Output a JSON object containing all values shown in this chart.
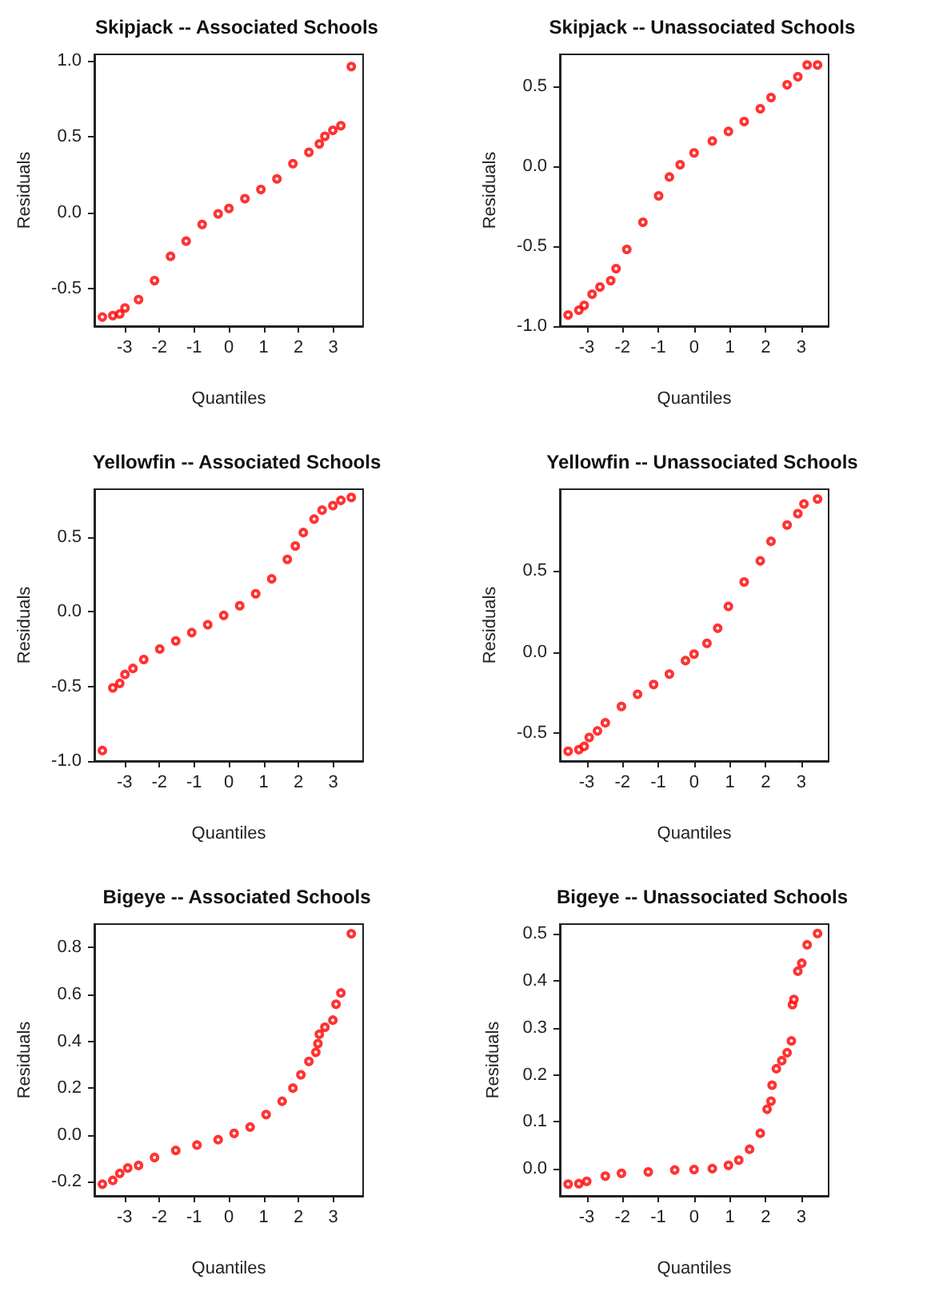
{
  "chart_data": [
    {
      "type": "scatter",
      "title": "Skipjack -- Associated Schools",
      "xlabel": "Quantiles",
      "ylabel": "Residuals",
      "marker": "circle",
      "grid": false,
      "xlim": [
        -3.87,
        3.86
      ],
      "xticks": [
        -3,
        -2,
        -1,
        0,
        1,
        2,
        3
      ],
      "ylim": [
        -0.75,
        1.04
      ],
      "yticks": [
        -0.5,
        {
          "value": 0,
          "label": "0.0"
        },
        0.5,
        {
          "value": 1,
          "label": "1.0"
        }
      ],
      "series": [
        {
          "color": "#ff0000",
          "x": [
            -3.64,
            -3.34,
            -3.14,
            -2.99,
            -2.6,
            -2.14,
            -1.68,
            -1.23,
            -0.77,
            -0.31,
            0,
            0.46,
            0.92,
            1.38,
            1.84,
            2.3,
            2.6,
            2.76,
            2.99,
            3.22,
            3.52
          ],
          "values": [
            -0.69,
            -0.68,
            -0.67,
            -0.63,
            -0.575,
            -0.45,
            -0.29,
            -0.19,
            -0.08,
            -0.01,
            0.025,
            0.09,
            0.15,
            0.22,
            0.32,
            0.395,
            0.45,
            0.5,
            0.54,
            0.57,
            0.96
          ]
        }
      ]
    },
    {
      "type": "scatter",
      "title": "Skipjack -- Unassociated Schools",
      "xlabel": "Quantiles",
      "ylabel": "Residuals",
      "marker": "circle",
      "grid": false,
      "xlim": [
        -3.75,
        3.76
      ],
      "xticks": [
        -3,
        -2,
        -1,
        0,
        1,
        2,
        3
      ],
      "ylim": [
        -1.0,
        0.7
      ],
      "yticks": [
        {
          "value": -1,
          "label": "-1.0"
        },
        -0.5,
        {
          "value": 0,
          "label": "0.0"
        },
        0.5
      ],
      "series": [
        {
          "color": "#ff0000",
          "x": [
            -3.52,
            -3.22,
            -3.07,
            -2.85,
            -2.63,
            -2.33,
            -2.18,
            -1.88,
            -1.43,
            -0.99,
            -0.69,
            -0.39,
            0,
            0.51,
            0.96,
            1.4,
            1.85,
            2.15,
            2.6,
            2.9,
            3.16,
            3.45
          ],
          "values": [
            -0.93,
            -0.9,
            -0.87,
            -0.8,
            -0.755,
            -0.715,
            -0.64,
            -0.52,
            -0.35,
            -0.185,
            -0.067,
            0.01,
            0.084,
            0.158,
            0.218,
            0.28,
            0.36,
            0.43,
            0.51,
            0.56,
            0.634,
            0.634
          ]
        }
      ]
    },
    {
      "type": "scatter",
      "title": "Yellowfin -- Associated Schools",
      "xlabel": "Quantiles",
      "ylabel": "Residuals",
      "marker": "circle",
      "grid": false,
      "xlim": [
        -3.87,
        3.86
      ],
      "xticks": [
        -3,
        -2,
        -1,
        0,
        1,
        2,
        3
      ],
      "ylim": [
        -1.0,
        0.82
      ],
      "yticks": [
        {
          "value": -1,
          "label": "-1.0"
        },
        -0.5,
        {
          "value": 0,
          "label": "0.0"
        },
        0.5
      ],
      "series": [
        {
          "color": "#ff0000",
          "x": [
            -3.64,
            -3.34,
            -3.14,
            -2.99,
            -2.76,
            -2.45,
            -1.99,
            -1.53,
            -1.07,
            -0.61,
            -0.15,
            0.31,
            0.77,
            1.23,
            1.68,
            1.91,
            2.14,
            2.45,
            2.68,
            2.99,
            3.22,
            3.52
          ],
          "values": [
            -0.93,
            -0.51,
            -0.48,
            -0.42,
            -0.38,
            -0.32,
            -0.25,
            -0.196,
            -0.14,
            -0.087,
            -0.025,
            0.04,
            0.12,
            0.22,
            0.35,
            0.44,
            0.53,
            0.62,
            0.68,
            0.71,
            0.746,
            0.765
          ]
        }
      ]
    },
    {
      "type": "scatter",
      "title": "Yellowfin -- Unassociated Schools",
      "xlabel": "Quantiles",
      "ylabel": "Residuals",
      "marker": "circle",
      "grid": false,
      "xlim": [
        -3.75,
        3.76
      ],
      "xticks": [
        -3,
        -2,
        -1,
        0,
        1,
        2,
        3
      ],
      "ylim": [
        -0.67,
        1.0
      ],
      "yticks": [
        -0.5,
        {
          "value": 0,
          "label": "0.0"
        },
        0.5
      ],
      "series": [
        {
          "color": "#ff0000",
          "x": [
            -3.52,
            -3.22,
            -3.07,
            -2.93,
            -2.7,
            -2.48,
            -2.03,
            -1.58,
            -1.13,
            -0.69,
            -0.24,
            0,
            0.36,
            0.66,
            0.96,
            1.4,
            1.85,
            2.15,
            2.6,
            2.9,
            3.07,
            3.45
          ],
          "values": [
            -0.61,
            -0.6,
            -0.58,
            -0.525,
            -0.485,
            -0.435,
            -0.335,
            -0.26,
            -0.2,
            -0.136,
            -0.053,
            -0.013,
            0.053,
            0.146,
            0.28,
            0.43,
            0.56,
            0.68,
            0.78,
            0.85,
            0.91,
            0.94
          ]
        }
      ]
    },
    {
      "type": "scatter",
      "title": "Bigeye -- Associated Schools",
      "xlabel": "Quantiles",
      "ylabel": "Residuals",
      "marker": "circle",
      "grid": false,
      "xlim": [
        -3.87,
        3.86
      ],
      "xticks": [
        -3,
        -2,
        -1,
        0,
        1,
        2,
        3
      ],
      "ylim": [
        -0.26,
        0.9
      ],
      "yticks": [
        -0.2,
        {
          "value": 0,
          "label": "0.0"
        },
        0.2,
        0.4,
        0.6,
        0.8
      ],
      "series": [
        {
          "color": "#ff0000",
          "x": [
            -3.64,
            -3.34,
            -3.14,
            -2.91,
            -2.6,
            -2.14,
            -1.53,
            -0.92,
            -0.31,
            0.15,
            0.61,
            1.07,
            1.53,
            1.84,
            2.07,
            2.3,
            2.5,
            2.56,
            2.6,
            2.76,
            2.99,
            3.08,
            3.22,
            3.52
          ],
          "values": [
            -0.21,
            -0.194,
            -0.164,
            -0.141,
            -0.13,
            -0.096,
            -0.066,
            -0.043,
            -0.02,
            0.007,
            0.034,
            0.087,
            0.144,
            0.2,
            0.257,
            0.314,
            0.353,
            0.39,
            0.43,
            0.46,
            0.49,
            0.558,
            0.606,
            0.859
          ]
        }
      ]
    },
    {
      "type": "scatter",
      "title": "Bigeye -- Unassociated Schools",
      "xlabel": "Quantiles",
      "ylabel": "Residuals",
      "marker": "circle",
      "grid": false,
      "xlim": [
        -3.75,
        3.76
      ],
      "xticks": [
        -3,
        -2,
        -1,
        0,
        1,
        2,
        3
      ],
      "ylim": [
        -0.057,
        0.52
      ],
      "yticks": [
        {
          "value": 0,
          "label": "0.0"
        },
        0.1,
        0.2,
        0.3,
        0.4,
        0.5
      ],
      "series": [
        {
          "color": "#ff0000",
          "x": [
            -3.52,
            -3.22,
            -3.0,
            -2.48,
            -2.03,
            -1.28,
            -0.54,
            0,
            0.51,
            0.96,
            1.25,
            1.55,
            1.85,
            2.04,
            2.15,
            2.18,
            2.3,
            2.45,
            2.6,
            2.72,
            2.75,
            2.79,
            2.9,
            3.01,
            3.16,
            3.45
          ],
          "values": [
            -0.032,
            -0.031,
            -0.026,
            -0.015,
            -0.009,
            -0.006,
            -0.002,
            -0.001,
            0.001,
            0.008,
            0.019,
            0.042,
            0.076,
            0.127,
            0.144,
            0.178,
            0.213,
            0.23,
            0.247,
            0.272,
            0.349,
            0.36,
            0.42,
            0.437,
            0.476,
            0.5
          ]
        }
      ]
    }
  ]
}
